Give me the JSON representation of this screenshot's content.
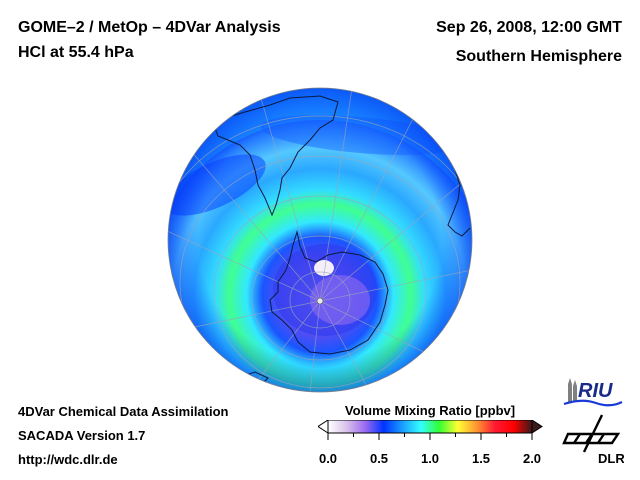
{
  "header": {
    "title_line1": "GOME–2 / MetOp – 4DVar Analysis",
    "title_line2": "HCl at 55.4 hPa",
    "date_time": "Sep 26, 2008, 12:00 GMT",
    "hemisphere": "Southern Hemisphere"
  },
  "footer": {
    "line1": "4DVar Chemical Data Assimilation",
    "line2": "SACADA Version 1.7",
    "line3": "http://wdc.dlr.de"
  },
  "map": {
    "projection": "orthographic",
    "center": "South Pole",
    "field": "HCl volume mixing ratio",
    "features": [
      "coastlines",
      "graticule"
    ],
    "regions_visible": [
      "South America",
      "Antarctica",
      "Africa (southern tip)",
      "Antarctic Peninsula"
    ],
    "low_values_region": "over Antarctica (~0.0-0.3 ppbv)",
    "collar_region": "ring around Antarctica (~0.8-1.0 ppbv)"
  },
  "colorbar": {
    "title": "Volume Mixing Ratio [ppbv]",
    "min": 0.0,
    "max": 2.0,
    "tick_labels": [
      "0.0",
      "0.5",
      "1.0",
      "1.5",
      "2.0"
    ],
    "tick_values": [
      0.0,
      0.5,
      1.0,
      1.5,
      2.0
    ],
    "colors": [
      "#ffffff",
      "#d9c2ea",
      "#9b6bf0",
      "#0033ff",
      "#1a9cff",
      "#33ffff",
      "#33ff33",
      "#ffff33",
      "#ff9933",
      "#ff1a33",
      "#ff0000",
      "#3a1a1a"
    ],
    "extend": "both"
  },
  "logos": {
    "riu": "RIU",
    "dlr": "DLR"
  }
}
